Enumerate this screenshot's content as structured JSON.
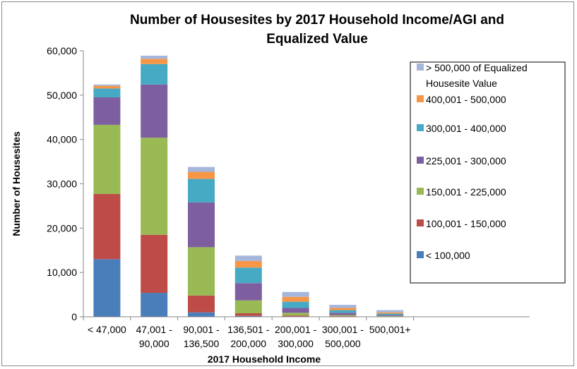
{
  "chart_data": {
    "type": "bar",
    "stacked": true,
    "title_lines": [
      "Number of Housesites by 2017 Household Income/AGI and",
      "Equalized Value"
    ],
    "xlabel": "2017 Household Income",
    "ylabel": "Number of Housesites",
    "ylim": [
      0,
      60000
    ],
    "yticks": [
      "0",
      "10,000",
      "20,000",
      "30,000",
      "40,000",
      "50,000",
      "60,000"
    ],
    "ytick_values": [
      0,
      10000,
      20000,
      30000,
      40000,
      50000,
      60000
    ],
    "grid": false,
    "legend_position": "right",
    "categories": [
      [
        "< 47,000"
      ],
      [
        "47,001 -",
        "90,000"
      ],
      [
        "90,001 -",
        "136,500"
      ],
      [
        "136,501 -",
        "200,000"
      ],
      [
        "200,001 -",
        "300,000"
      ],
      [
        "300,001 -",
        "500,000"
      ],
      [
        "500,001+"
      ]
    ],
    "series": [
      {
        "name": "< 100,000",
        "color": "#4a7ebb",
        "values": [
          13000,
          5400,
          1000,
          200,
          100,
          100,
          50
        ]
      },
      {
        "name": "100,001 - 150,000",
        "color": "#be4b48",
        "values": [
          14700,
          13100,
          3800,
          600,
          200,
          100,
          50
        ]
      },
      {
        "name": "150,001 - 225,000",
        "color": "#98b954",
        "values": [
          15600,
          21900,
          10900,
          2900,
          600,
          200,
          100
        ]
      },
      {
        "name": "225,001 - 300,000",
        "color": "#7d5fa0",
        "values": [
          6200,
          12000,
          10100,
          3900,
          1100,
          500,
          200
        ]
      },
      {
        "name": "300,001 - 400,000",
        "color": "#46aac5",
        "values": [
          2000,
          4600,
          5300,
          3500,
          1400,
          600,
          300
        ]
      },
      {
        "name": "400,001 - 500,000",
        "color": "#f79646",
        "values": [
          600,
          1200,
          1600,
          1500,
          1100,
          500,
          300
        ]
      },
      {
        "name_lines": [
          "> 500,000 of Equalized",
          "Housesite Value"
        ],
        "color": "#a5b6dc",
        "values": [
          300,
          700,
          1100,
          1200,
          1100,
          700,
          500
        ]
      }
    ]
  }
}
